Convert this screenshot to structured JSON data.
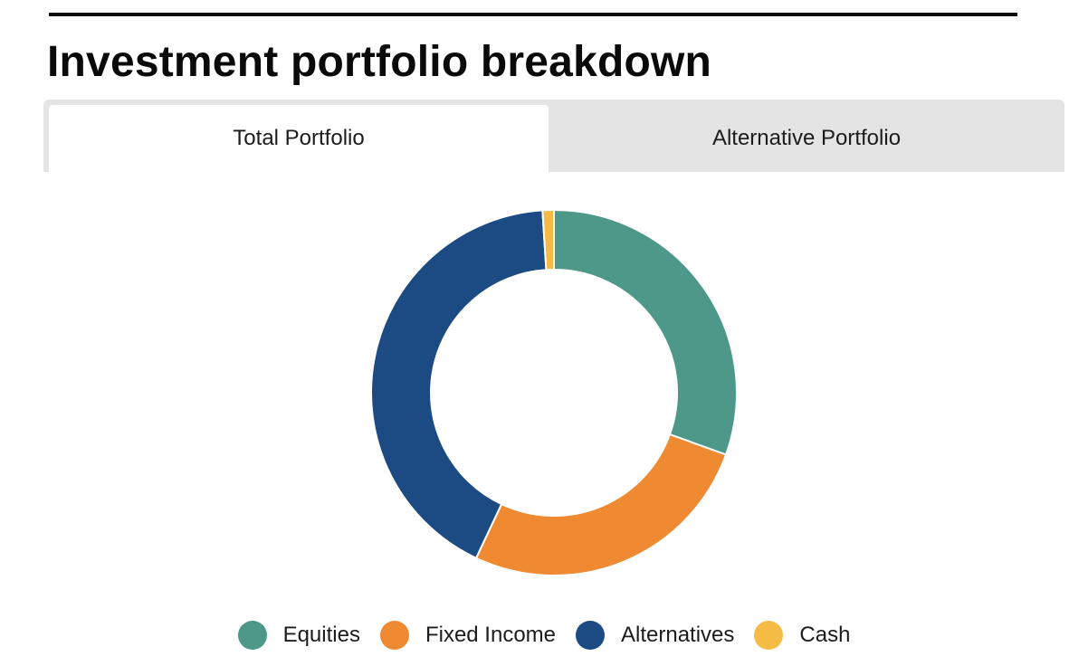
{
  "page": {
    "title": "Investment portfolio breakdown"
  },
  "tabs": [
    {
      "label": "Total Portfolio",
      "active": true
    },
    {
      "label": "Alternative Portfolio",
      "active": false
    }
  ],
  "colors": {
    "equities": "#4e9889",
    "fixed_income": "#ef8a33",
    "alternatives": "#1c4b84",
    "cash": "#f4bc45"
  },
  "chart_data": {
    "type": "pie",
    "title": "",
    "donut": true,
    "legend_position": "bottom",
    "categories": [
      "Equities",
      "Fixed Income",
      "Alternatives",
      "Cash"
    ],
    "values": [
      30.5,
      26.5,
      42.0,
      1.0
    ],
    "colors": [
      "#4e9889",
      "#ef8a33",
      "#1c4b84",
      "#f4bc45"
    ]
  }
}
